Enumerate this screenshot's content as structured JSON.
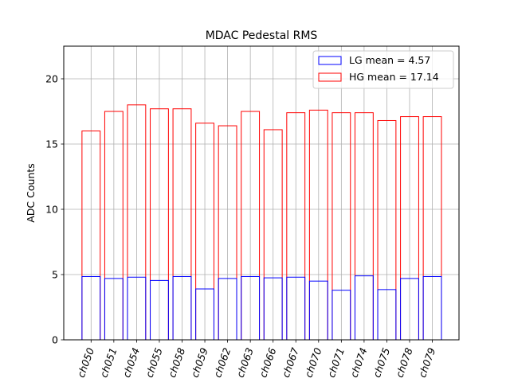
{
  "chart_data": {
    "type": "bar",
    "title": "MDAC Pedestal RMS",
    "xlabel": "",
    "ylabel": "ADC Counts",
    "ylim": [
      0,
      22.5
    ],
    "yticks": [
      0,
      5,
      10,
      15,
      20
    ],
    "grid": true,
    "legend_position": "top-right",
    "categories": [
      "ch050",
      "ch051",
      "ch054",
      "ch055",
      "ch058",
      "ch059",
      "ch062",
      "ch063",
      "ch066",
      "ch067",
      "ch070",
      "ch071",
      "ch074",
      "ch075",
      "ch078",
      "ch079"
    ],
    "series": [
      {
        "name": "HG",
        "legend": "HG mean = 17.14",
        "color": "#ff0000",
        "values": [
          16.0,
          17.5,
          18.0,
          17.7,
          17.7,
          16.6,
          16.4,
          17.5,
          16.1,
          17.4,
          17.6,
          17.4,
          17.4,
          16.8,
          17.1,
          17.1
        ]
      },
      {
        "name": "LG",
        "legend": "LG mean = 4.57",
        "color": "#0000ff",
        "values": [
          4.85,
          4.7,
          4.8,
          4.55,
          4.85,
          3.9,
          4.7,
          4.85,
          4.75,
          4.8,
          4.5,
          3.8,
          4.9,
          3.85,
          4.7,
          4.85
        ]
      }
    ]
  }
}
